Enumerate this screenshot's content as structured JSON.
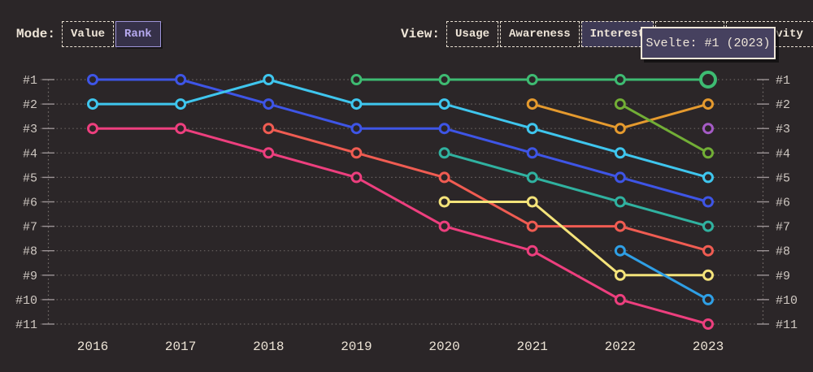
{
  "toolbar": {
    "mode_label": "Mode:",
    "mode_options": [
      {
        "label": "Value",
        "selected": false
      },
      {
        "label": "Rank",
        "selected": true
      }
    ],
    "view_label": "View:",
    "view_options": [
      {
        "label": "Usage",
        "selected": false
      },
      {
        "label": "Awareness",
        "selected": false
      },
      {
        "label": "Interest",
        "selected": true
      },
      {
        "label": "",
        "selected": false
      },
      {
        "label": "Positivity",
        "selected": false
      }
    ]
  },
  "tooltip": {
    "text": "Svelte: #1 (2023)"
  },
  "chart_data": {
    "type": "line",
    "subtype": "bump-rank-chart",
    "title": "",
    "x_labels": [
      "2016",
      "2017",
      "2018",
      "2019",
      "2020",
      "2021",
      "2022",
      "2023"
    ],
    "y_labels": [
      "#1",
      "#2",
      "#3",
      "#4",
      "#5",
      "#6",
      "#7",
      "#8",
      "#9",
      "#10",
      "#11"
    ],
    "y_axis": {
      "range": [
        1,
        11
      ],
      "inverted": true,
      "mirrored_right": true
    },
    "grid": "dotted-horizontal",
    "legend": "none",
    "series": [
      {
        "id": "blue",
        "color": "#3E55E6",
        "ranks": [
          1,
          1,
          2,
          3,
          3,
          4,
          5,
          6
        ]
      },
      {
        "id": "cyan",
        "color": "#3FC6EE",
        "ranks": [
          2,
          2,
          1,
          2,
          2,
          3,
          4,
          5
        ]
      },
      {
        "id": "rose",
        "color": "#ED3F7E",
        "ranks": [
          3,
          3,
          4,
          5,
          7,
          8,
          10,
          11
        ]
      },
      {
        "id": "coral",
        "color": "#F05C52",
        "ranks": [
          null,
          null,
          3,
          4,
          5,
          7,
          7,
          8
        ]
      },
      {
        "id": "svelte",
        "name": "Svelte",
        "color": "#3EBB72",
        "ranks": [
          null,
          null,
          null,
          1,
          1,
          1,
          1,
          1
        ]
      },
      {
        "id": "teal",
        "color": "#30B2A0",
        "ranks": [
          null,
          null,
          null,
          null,
          4,
          5,
          6,
          7
        ]
      },
      {
        "id": "yellow",
        "color": "#F4E37A",
        "ranks": [
          null,
          null,
          null,
          null,
          6,
          6,
          9,
          9
        ]
      },
      {
        "id": "orange",
        "color": "#E59A2E",
        "ranks": [
          null,
          null,
          null,
          null,
          null,
          2,
          3,
          2
        ]
      },
      {
        "id": "olive",
        "color": "#72AE36",
        "ranks": [
          null,
          null,
          null,
          null,
          null,
          null,
          2,
          4
        ]
      },
      {
        "id": "azure",
        "color": "#2F9FE5",
        "ranks": [
          null,
          null,
          null,
          null,
          null,
          null,
          8,
          10
        ]
      },
      {
        "id": "purple",
        "color": "#A55BC6",
        "ranks": [
          null,
          null,
          null,
          null,
          null,
          null,
          null,
          3
        ]
      }
    ],
    "highlight_point": {
      "series_id": "svelte",
      "x_label": "2023",
      "rank": 1
    }
  }
}
